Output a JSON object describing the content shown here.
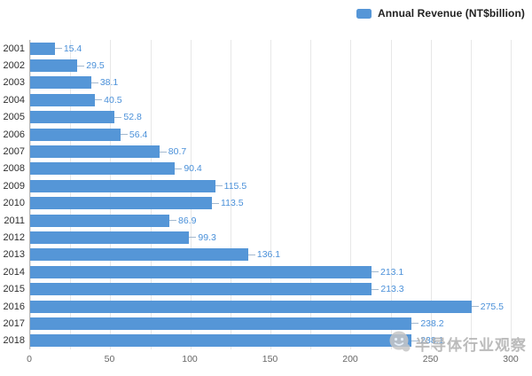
{
  "legend": {
    "label": "Annual Revenue (NT$billion)",
    "swatch_color": "#5596d7"
  },
  "chart_data": {
    "type": "bar",
    "orientation": "horizontal",
    "title": "",
    "xlabel": "",
    "ylabel": "",
    "series_name": "Annual Revenue (NT$billion)",
    "categories": [
      "2001",
      "2002",
      "2003",
      "2004",
      "2005",
      "2006",
      "2007",
      "2008",
      "2009",
      "2010",
      "2011",
      "2012",
      "2013",
      "2014",
      "2015",
      "2016",
      "2017",
      "2018"
    ],
    "values": [
      15.4,
      29.5,
      38.1,
      40.5,
      52.8,
      56.4,
      80.7,
      90.4,
      115.5,
      113.5,
      86.9,
      99.3,
      136.1,
      213.1,
      213.3,
      275.5,
      238.2,
      238.1
    ],
    "value_labels": [
      "15.4",
      "29.5",
      "38.1",
      "40.5",
      "52.8",
      "56.4",
      "80.7",
      "90.4",
      "115.5",
      "113.5",
      "86.9",
      "99.3",
      "136.1",
      "213.1",
      "213.3",
      "275.5",
      "238.2",
      "238.1"
    ],
    "xlim": [
      0,
      300
    ],
    "x_tick_labels": [
      0,
      50,
      100,
      150,
      200,
      250,
      300
    ],
    "grid_interval": 25,
    "grid": true,
    "legend_position": "top-right",
    "bar_color": "#5596d7",
    "value_label_color": "#4a90d9",
    "grid_color": "#e7e7e7",
    "axis_line_color": "#b8b8b8"
  },
  "watermark": {
    "text": "半导体行业观察",
    "icon": "mascot-logo-icon",
    "color": "#b0b0b0"
  }
}
